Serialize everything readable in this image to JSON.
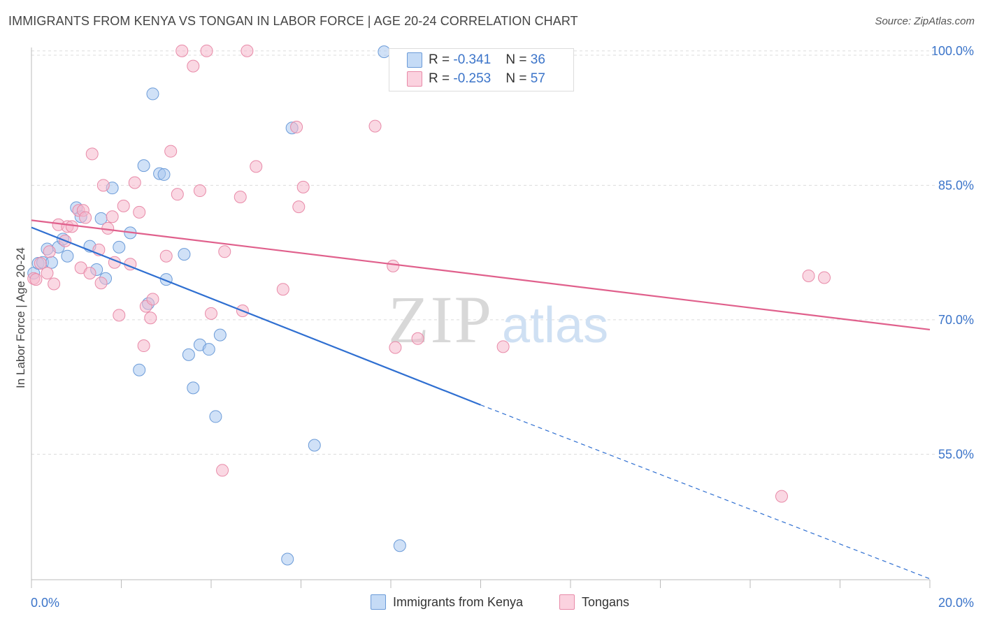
{
  "title": "IMMIGRANTS FROM KENYA VS TONGAN IN LABOR FORCE | AGE 20-24 CORRELATION CHART",
  "source": "Source: ZipAtlas.com",
  "watermark": {
    "zip": "ZIP",
    "atlas": "atlas"
  },
  "legend": {
    "rows": [
      {
        "r_label": "R = ",
        "r_value": "-0.341",
        "n_label": "N = ",
        "n_value": "36",
        "color": "#a9c8f0"
      },
      {
        "r_label": "R = ",
        "r_value": "-0.253",
        "n_label": "N = ",
        "n_value": "57",
        "color": "#f6b8cc"
      }
    ]
  },
  "bottom_legend": [
    "Immigrants from Kenya",
    "Tongans"
  ],
  "chart_data": {
    "type": "scatter",
    "title": "IMMIGRANTS FROM KENYA VS TONGAN IN LABOR FORCE | AGE 20-24 CORRELATION CHART",
    "xlabel": "",
    "ylabel": "In Labor Force | Age 20-24",
    "xlim": [
      0,
      20
    ],
    "ylim": [
      41,
      101
    ],
    "x_tick_labels": [
      "0.0%",
      "20.0%"
    ],
    "y_ticks": [
      55,
      70,
      85,
      100
    ],
    "y_tick_labels": [
      "55.0%",
      "70.0%",
      "85.0%",
      "100.0%"
    ],
    "grid": true,
    "legend_placement": "top-center",
    "series": [
      {
        "name": "Immigrants from Kenya",
        "color": "#a9c8f0",
        "stroke": "#6b9bd8",
        "line_color": "#2f6fd1",
        "points": [
          [
            0.05,
            75.2
          ],
          [
            0.15,
            76.3
          ],
          [
            0.25,
            76.4
          ],
          [
            0.35,
            77.9
          ],
          [
            0.45,
            76.4
          ],
          [
            0.6,
            78.1
          ],
          [
            0.7,
            79.0
          ],
          [
            0.8,
            77.1
          ],
          [
            1.0,
            82.5
          ],
          [
            1.1,
            81.5
          ],
          [
            1.3,
            78.2
          ],
          [
            1.45,
            75.6
          ],
          [
            1.55,
            81.3
          ],
          [
            1.65,
            74.6
          ],
          [
            1.8,
            84.7
          ],
          [
            1.95,
            78.1
          ],
          [
            2.2,
            79.7
          ],
          [
            2.4,
            64.4
          ],
          [
            2.5,
            87.2
          ],
          [
            2.6,
            71.8
          ],
          [
            2.7,
            95.2
          ],
          [
            2.85,
            86.3
          ],
          [
            2.95,
            86.2
          ],
          [
            3.0,
            74.5
          ],
          [
            3.4,
            77.3
          ],
          [
            3.5,
            66.1
          ],
          [
            3.6,
            62.4
          ],
          [
            3.75,
            67.2
          ],
          [
            3.95,
            66.7
          ],
          [
            4.1,
            59.2
          ],
          [
            4.2,
            68.3
          ],
          [
            5.7,
            43.3
          ],
          [
            5.8,
            91.4
          ],
          [
            6.3,
            56.0
          ],
          [
            7.85,
            99.9
          ],
          [
            8.2,
            44.8
          ]
        ],
        "trend": {
          "x0": 0,
          "y0": 80.3,
          "x1": 10,
          "y1": 60.5,
          "dashed_to_x": 20,
          "dashed_to_y": 41.1
        }
      },
      {
        "name": "Tongans",
        "color": "#f6b8cc",
        "stroke": "#e88aa8",
        "line_color": "#e0608c",
        "points": [
          [
            0.05,
            74.6
          ],
          [
            0.2,
            76.3
          ],
          [
            0.35,
            75.2
          ],
          [
            0.4,
            77.6
          ],
          [
            0.5,
            74.0
          ],
          [
            0.6,
            80.6
          ],
          [
            0.75,
            78.8
          ],
          [
            0.8,
            80.4
          ],
          [
            0.9,
            80.4
          ],
          [
            1.05,
            82.2
          ],
          [
            1.1,
            75.8
          ],
          [
            1.15,
            82.2
          ],
          [
            1.2,
            81.4
          ],
          [
            1.3,
            75.2
          ],
          [
            1.35,
            88.5
          ],
          [
            1.5,
            77.8
          ],
          [
            1.55,
            74.1
          ],
          [
            1.6,
            85.0
          ],
          [
            1.7,
            80.2
          ],
          [
            1.8,
            81.5
          ],
          [
            1.85,
            76.4
          ],
          [
            1.95,
            70.5
          ],
          [
            2.05,
            82.7
          ],
          [
            2.2,
            76.2
          ],
          [
            2.3,
            85.3
          ],
          [
            2.4,
            82.0
          ],
          [
            2.5,
            67.1
          ],
          [
            2.55,
            71.5
          ],
          [
            2.65,
            70.2
          ],
          [
            2.7,
            72.3
          ],
          [
            3.0,
            77.1
          ],
          [
            3.1,
            88.8
          ],
          [
            3.25,
            84.0
          ],
          [
            3.35,
            100.0
          ],
          [
            3.6,
            98.3
          ],
          [
            3.75,
            84.4
          ],
          [
            3.9,
            100.0
          ],
          [
            4.0,
            70.7
          ],
          [
            4.25,
            53.2
          ],
          [
            4.3,
            77.6
          ],
          [
            4.65,
            83.7
          ],
          [
            4.7,
            71.0
          ],
          [
            4.8,
            100.0
          ],
          [
            5.0,
            87.1
          ],
          [
            5.6,
            73.4
          ],
          [
            5.9,
            91.5
          ],
          [
            5.95,
            82.6
          ],
          [
            6.05,
            84.8
          ],
          [
            7.65,
            91.6
          ],
          [
            8.05,
            76.0
          ],
          [
            8.1,
            66.9
          ],
          [
            8.6,
            67.9
          ],
          [
            10.5,
            67.0
          ],
          [
            16.7,
            50.3
          ],
          [
            17.3,
            74.9
          ],
          [
            17.65,
            74.7
          ],
          [
            0.1,
            74.5
          ]
        ],
        "trend": {
          "x0": 0,
          "y0": 81.1,
          "x1": 20,
          "y1": 68.9
        }
      }
    ]
  }
}
